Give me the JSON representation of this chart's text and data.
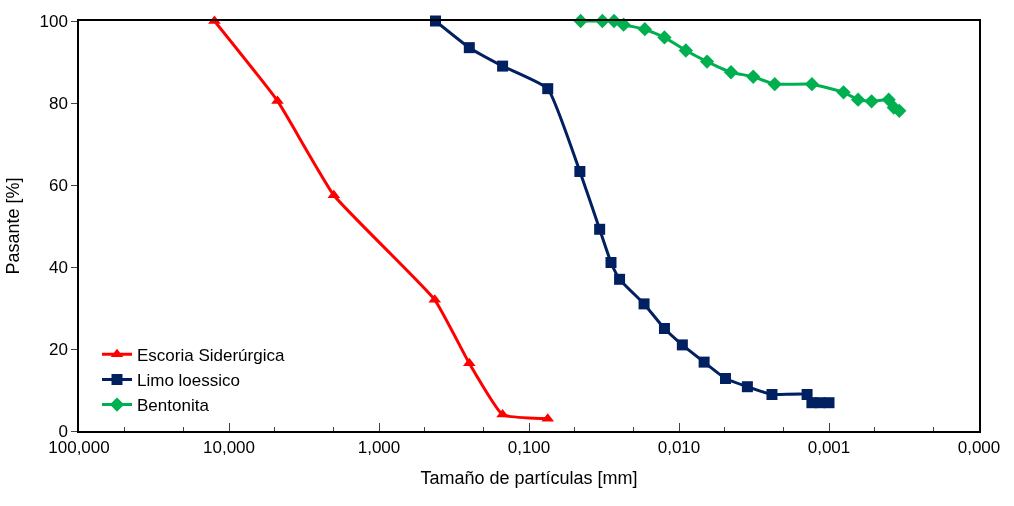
{
  "chart_data": {
    "type": "line",
    "xlabel": "Tamaño de partículas [mm]",
    "ylabel": "Pasante [%]",
    "log": "x",
    "xlim": [
      100,
      0.0001
    ],
    "xticks": [
      {
        "value": 100,
        "label": "100,000"
      },
      {
        "value": 10,
        "label": "10,000"
      },
      {
        "value": 1,
        "label": "1,000"
      },
      {
        "value": 0.1,
        "label": "0,100"
      },
      {
        "value": 0.01,
        "label": "0,010"
      },
      {
        "value": 0.001,
        "label": "0,001"
      },
      {
        "value": 0.0001,
        "label": "0,000"
      }
    ],
    "ylim": [
      0,
      100
    ],
    "yticks": [
      0,
      20,
      40,
      60,
      80,
      100
    ],
    "grid": false,
    "legend": "bottom left",
    "line_style": "solid",
    "series": [
      {
        "name": "Escoria Siderúrgica",
        "color": "#ff0000",
        "marker": "triangle",
        "x": [
          12.5,
          4.75,
          2.0,
          0.425,
          0.25,
          0.15,
          0.075
        ],
        "values": [
          100,
          80.5,
          57.5,
          32,
          16.5,
          4,
          3
        ]
      },
      {
        "name": "Limo loessico",
        "color": "#002060",
        "marker": "square",
        "x": [
          0.42,
          0.25,
          0.15,
          0.075,
          0.0458,
          0.0338,
          0.0284,
          0.0249,
          0.0171,
          0.0125,
          0.0095,
          0.0068,
          0.0049,
          0.0035,
          0.0024,
          0.0014,
          0.0013,
          0.00115,
          0.001
        ],
        "values": [
          100,
          93.5,
          89,
          83.5,
          63.3,
          49.2,
          41.1,
          37,
          31,
          25,
          21,
          16.8,
          12.8,
          10.8,
          8.9,
          8.9,
          6.9,
          6.9,
          6.9
        ]
      },
      {
        "name": "Bentonita",
        "color": "#00b050",
        "marker": "diamond",
        "x": [
          0.0453,
          0.0324,
          0.0271,
          0.0234,
          0.0169,
          0.0125,
          0.009,
          0.0065,
          0.0045,
          0.0032,
          0.0023,
          0.0013,
          0.0008,
          0.00064,
          0.00052,
          0.0004,
          0.00037,
          0.00034
        ],
        "values": [
          100,
          100,
          100,
          99.1,
          98,
          96,
          92.8,
          90.1,
          87.5,
          86.4,
          84.6,
          84.6,
          82.6,
          80.8,
          80.4,
          80.8,
          78.9,
          78.1
        ]
      }
    ]
  }
}
